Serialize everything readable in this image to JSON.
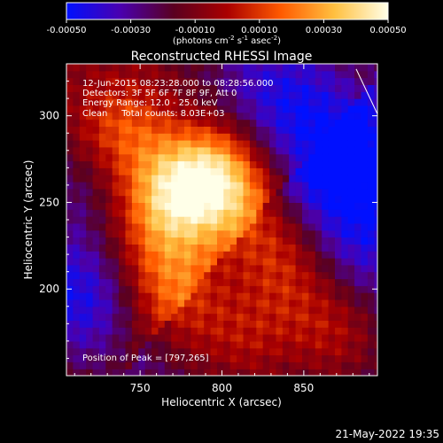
{
  "colorbar": {
    "tick_labels": [
      "-0.00050",
      "-0.00030",
      "-0.00010",
      "0.00010",
      "0.00030",
      "0.00050"
    ],
    "tick_values": [
      -0.0005,
      -0.0003,
      -0.0001,
      0.0001,
      0.0003,
      0.0005
    ],
    "range": [
      -0.0005,
      0.0005
    ],
    "units_prefix": "(photons cm",
    "units_sup1": "-2",
    "units_mid": " s",
    "units_sup2": "-1",
    "units_mid2": " asec",
    "units_sup3": "-2",
    "units_suffix": ")",
    "colors": [
      "#0010ff",
      "#4a00b0",
      "#5a0020",
      "#aa0000",
      "#ff5a00",
      "#ffc040",
      "#ffffe8"
    ]
  },
  "chart_data": {
    "type": "heatmap",
    "title": "Reconstructed RHESSI Image",
    "xlabel": "Heliocentric X (arcsec)",
    "ylabel": "Heliocentric Y (arcsec)",
    "xlim": [
      705,
      895
    ],
    "ylim": [
      150,
      330
    ],
    "x_ticks": [
      750,
      800,
      850
    ],
    "y_ticks": [
      200,
      250,
      300
    ],
    "x_tick_labels": [
      "750",
      "800",
      "850"
    ],
    "y_tick_labels": [
      "200",
      "250",
      "300"
    ],
    "peak": [
      797,
      265
    ],
    "limb_line": [
      [
        882,
        327
      ],
      [
        895,
        301
      ]
    ],
    "info_lines": [
      "12-Jun-2015 08:23:28.000 to 08:28:56.000",
      "Detectors: 3F 5F 6F 7F 8F 9F, Att 0",
      "Energy Range: 12.0 - 25.0 keV",
      "Clean     Total counts: 8.03E+03"
    ],
    "peak_label": "Position of Peak = [797,265]",
    "sources": [
      {
        "x": 797,
        "y": 264,
        "value": 0.00055
      },
      {
        "x": 765,
        "y": 253,
        "value": 0.00042
      },
      {
        "x": 738,
        "y": 292,
        "value": 0.00028
      },
      {
        "x": 760,
        "y": 215,
        "value": 0.00024
      },
      {
        "x": 830,
        "y": 230,
        "value": 0.00022
      },
      {
        "x": 775,
        "y": 190,
        "value": 0.00022
      },
      {
        "x": 815,
        "y": 170,
        "value": 0.0002
      },
      {
        "x": 870,
        "y": 175,
        "value": 0.00022
      },
      {
        "x": 845,
        "y": 205,
        "value": 0.00018
      },
      {
        "x": 720,
        "y": 230,
        "value": 0.00016
      }
    ],
    "background": [
      {
        "x": 870,
        "y": 280,
        "value": -0.0003
      },
      {
        "x": 830,
        "y": 315,
        "value": -0.00025
      },
      {
        "x": 715,
        "y": 200,
        "value": -0.00035
      },
      {
        "x": 720,
        "y": 250,
        "value": -0.0002
      },
      {
        "x": 885,
        "y": 230,
        "value": -0.00018
      }
    ]
  },
  "footer": {
    "date": "21-May-2022 19:35"
  }
}
